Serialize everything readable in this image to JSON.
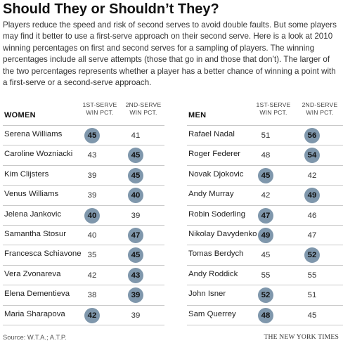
{
  "title": "Should They or Shouldn’t They?",
  "intro": "Players reduce the speed and risk of second serves to avoid double faults. But some players may find it better to use a first-serve approach on their second serve. Here is a look at 2010 winning percentages on first and second serves for a sampling of players. The winning percentages include all serve attempts (those that go in and those that don’t). The larger of the two percentages represents whether a player has a better chance of winning a point with a first-serve or a second-serve approach.",
  "source": "Source: W.T.A.; A.T.P.",
  "credit": "THE NEW YORK TIMES",
  "colors": {
    "highlight": "#7f97ac",
    "rule": "#c9c9c9"
  },
  "chart_data": [
    {
      "type": "table",
      "group": "WOMEN",
      "columns": [
        "1ST-SERVE WIN PCT.",
        "2ND-SERVE WIN PCT."
      ],
      "rows": [
        {
          "name": "Serena Williams",
          "first": 45,
          "second": 41
        },
        {
          "name": "Caroline Wozniacki",
          "first": 43,
          "second": 45
        },
        {
          "name": "Kim Clijsters",
          "first": 39,
          "second": 45
        },
        {
          "name": "Venus Williams",
          "first": 39,
          "second": 40
        },
        {
          "name": "Jelena Jankovic",
          "first": 40,
          "second": 39
        },
        {
          "name": "Samantha Stosur",
          "first": 40,
          "second": 47
        },
        {
          "name": "Francesca Schiavone",
          "first": 35,
          "second": 45
        },
        {
          "name": "Vera Zvonareva",
          "first": 42,
          "second": 43
        },
        {
          "name": "Elena Dementieva",
          "first": 38,
          "second": 39
        },
        {
          "name": "Maria Sharapova",
          "first": 42,
          "second": 39
        }
      ]
    },
    {
      "type": "table",
      "group": "MEN",
      "columns": [
        "1ST-SERVE WIN PCT.",
        "2ND-SERVE WIN PCT."
      ],
      "rows": [
        {
          "name": "Rafael Nadal",
          "first": 51,
          "second": 56
        },
        {
          "name": "Roger Federer",
          "first": 48,
          "second": 54
        },
        {
          "name": "Novak Djokovic",
          "first": 45,
          "second": 42
        },
        {
          "name": "Andy Murray",
          "first": 42,
          "second": 49
        },
        {
          "name": "Robin Soderling",
          "first": 47,
          "second": 46
        },
        {
          "name": "Nikolay Davydenko",
          "first": 49,
          "second": 47
        },
        {
          "name": "Tomas Berdych",
          "first": 45,
          "second": 52
        },
        {
          "name": "Andy Roddick",
          "first": 55,
          "second": 55
        },
        {
          "name": "John Isner",
          "first": 52,
          "second": 51
        },
        {
          "name": "Sam Querrey",
          "first": 48,
          "second": 45
        }
      ]
    }
  ]
}
